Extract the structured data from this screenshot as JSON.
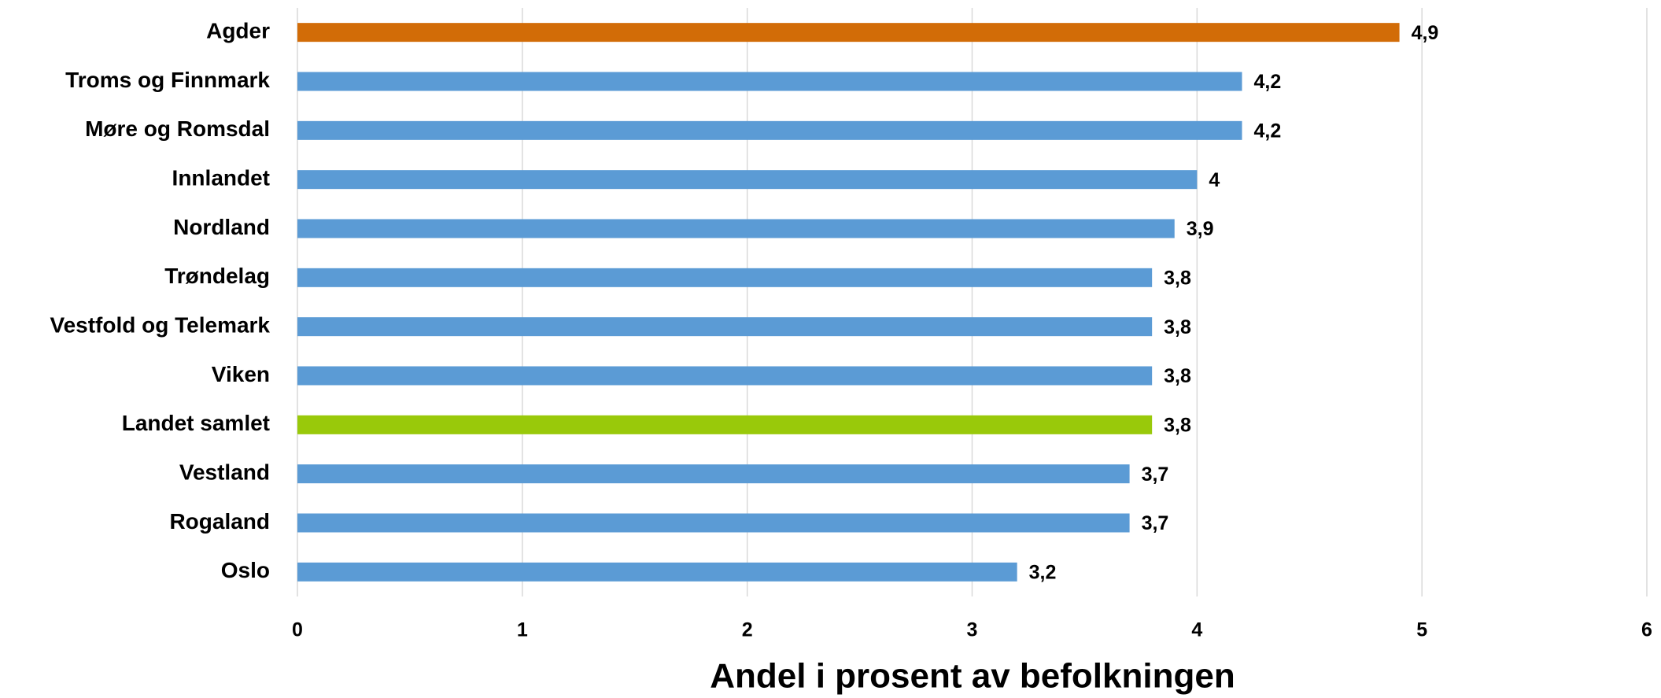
{
  "chart_data": {
    "type": "hbar",
    "x_label": "Andel i prosent av befolkningen",
    "categories": [
      "Agder",
      "Troms og Finnmark",
      "Møre og Romsdal",
      "Innlandet",
      "Nordland",
      "Trøndelag ",
      "Vestfold og Telemark",
      "Viken",
      "Landet samlet",
      "Vestland",
      "Rogaland",
      "Oslo"
    ],
    "values": [
      4.9,
      4.2,
      4.2,
      4,
      3.9,
      3.8,
      3.8,
      3.8,
      3.8,
      3.7,
      3.7,
      3.2
    ],
    "value_labels": [
      "4,9",
      "4,2",
      "4,2",
      "4",
      "3,9",
      "3,8",
      "3,8",
      "3,8",
      "3,8",
      "3,7",
      "3,7",
      "3,2"
    ],
    "colors": [
      "#d26c07",
      "#5b9bd5",
      "#5b9bd5",
      "#5b9bd5",
      "#5b9bd5",
      "#5b9bd5",
      "#5b9bd5",
      "#5b9bd5",
      "#99c90a",
      "#5b9bd5",
      "#5b9bd5",
      "#5b9bd5"
    ],
    "xlim": [
      0,
      6
    ],
    "xticks": [
      0,
      1,
      2,
      3,
      4,
      5,
      6
    ],
    "grid": true
  }
}
